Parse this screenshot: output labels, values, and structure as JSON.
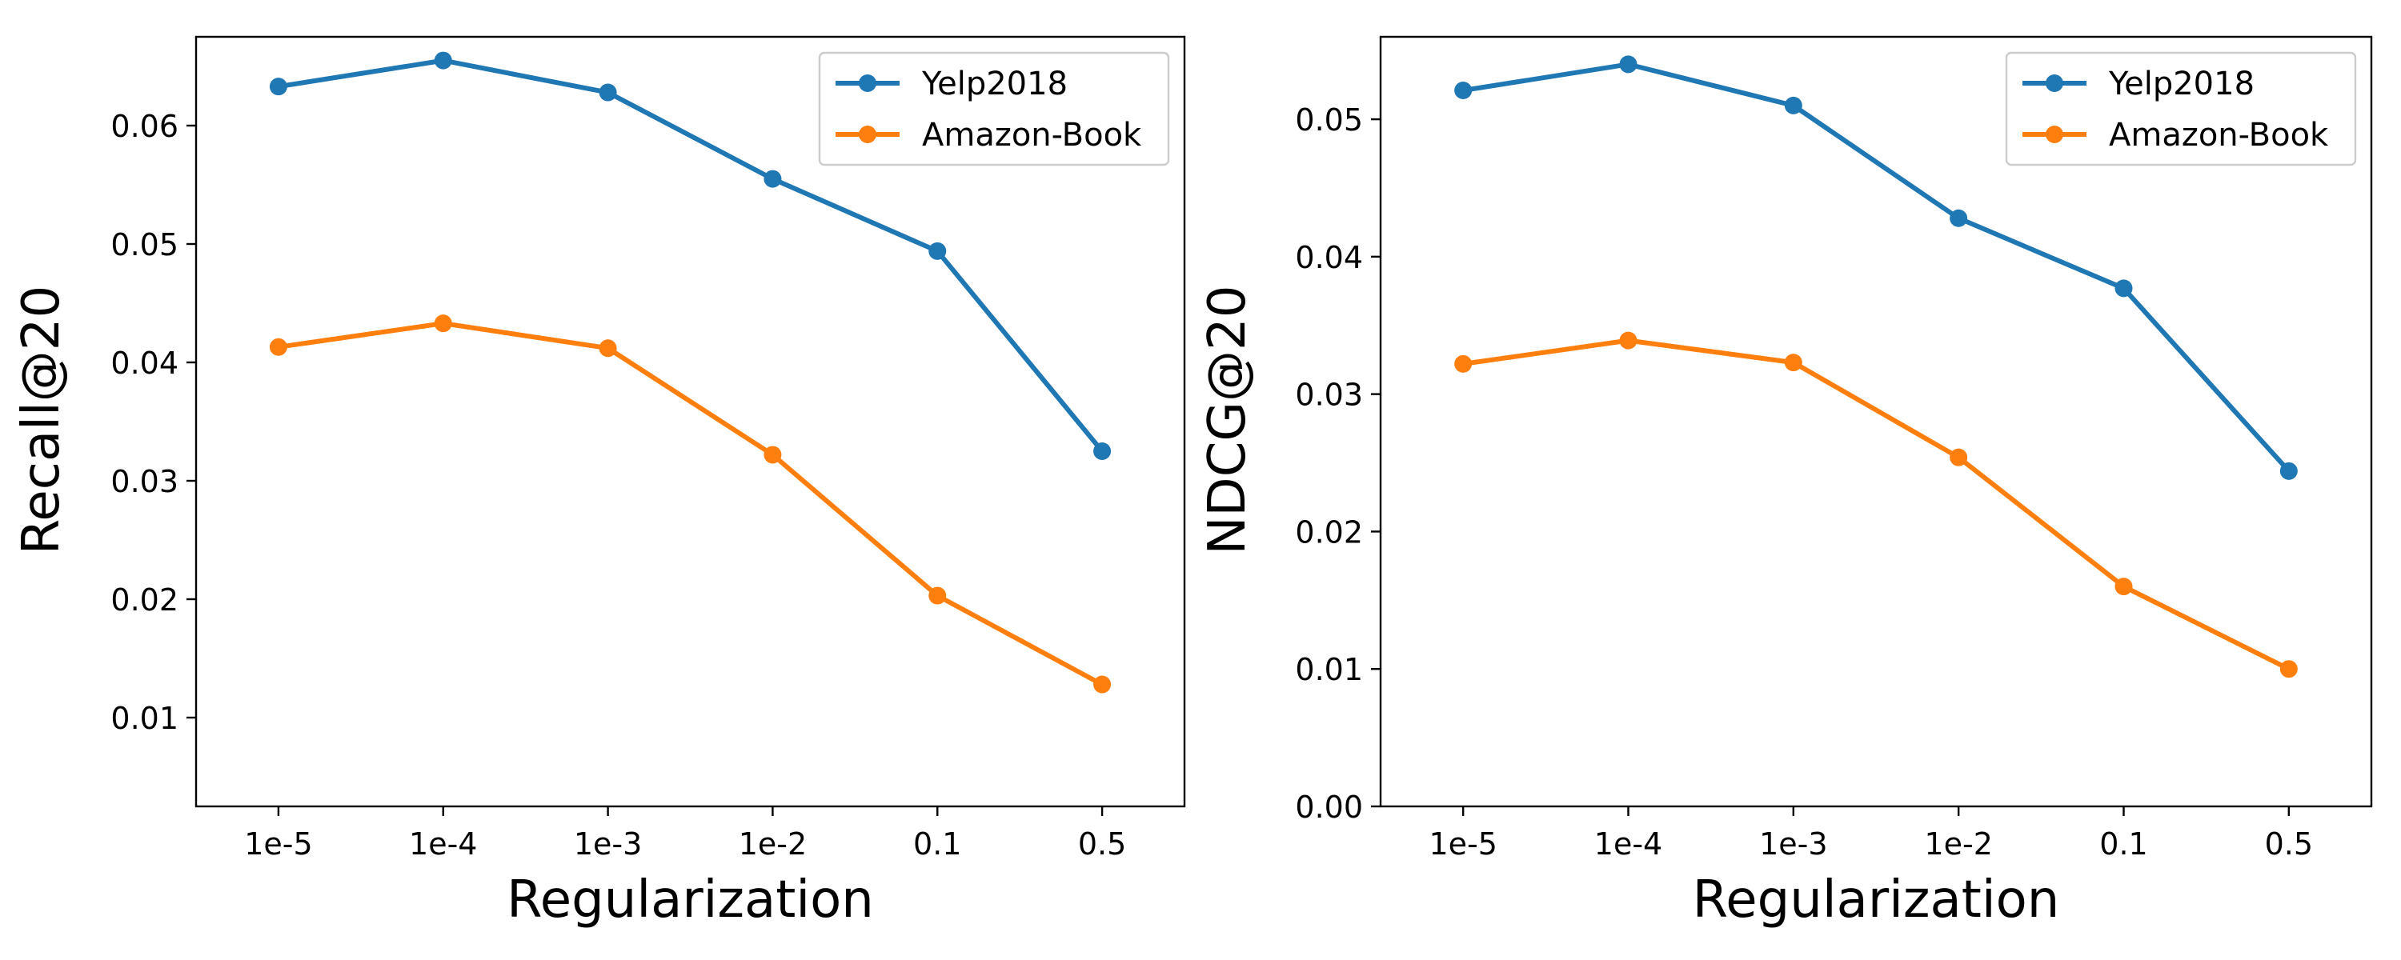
{
  "chart_data": [
    {
      "type": "line",
      "title": "",
      "xlabel": "Regularization",
      "ylabel": "Recall@20",
      "categories": [
        "1e-5",
        "1e-4",
        "1e-3",
        "1e-2",
        "0.1",
        "0.5"
      ],
      "ylim": [
        0.0025,
        0.0675
      ],
      "yticks": [
        0.01,
        0.02,
        0.03,
        0.04,
        0.05,
        0.06
      ],
      "ytick_labels": [
        "0.01",
        "0.02",
        "0.03",
        "0.04",
        "0.05",
        "0.06"
      ],
      "legend": "upper right",
      "grid": false,
      "series": [
        {
          "name": "Yelp2018",
          "color": "#1f77b4",
          "values": [
            0.0633,
            0.0655,
            0.0628,
            0.0555,
            0.0494,
            0.0325
          ]
        },
        {
          "name": "Amazon-Book",
          "color": "#ff7f0e",
          "values": [
            0.0413,
            0.0433,
            0.0412,
            0.0322,
            0.0203,
            0.0128
          ]
        }
      ]
    },
    {
      "type": "line",
      "title": "",
      "xlabel": "Regularization",
      "ylabel": "NDCG@20",
      "categories": [
        "1e-5",
        "1e-4",
        "1e-3",
        "1e-2",
        "0.1",
        "0.5"
      ],
      "ylim": [
        0.0,
        0.056
      ],
      "yticks": [
        0.0,
        0.01,
        0.02,
        0.03,
        0.04,
        0.05
      ],
      "ytick_labels": [
        "0.00",
        "0.01",
        "0.02",
        "0.03",
        "0.04",
        "0.05"
      ],
      "legend": "upper right",
      "grid": false,
      "series": [
        {
          "name": "Yelp2018",
          "color": "#1f77b4",
          "values": [
            0.0521,
            0.054,
            0.051,
            0.0428,
            0.0377,
            0.0244
          ]
        },
        {
          "name": "Amazon-Book",
          "color": "#ff7f0e",
          "values": [
            0.0322,
            0.0339,
            0.0323,
            0.0254,
            0.016,
            0.01
          ]
        }
      ]
    }
  ]
}
